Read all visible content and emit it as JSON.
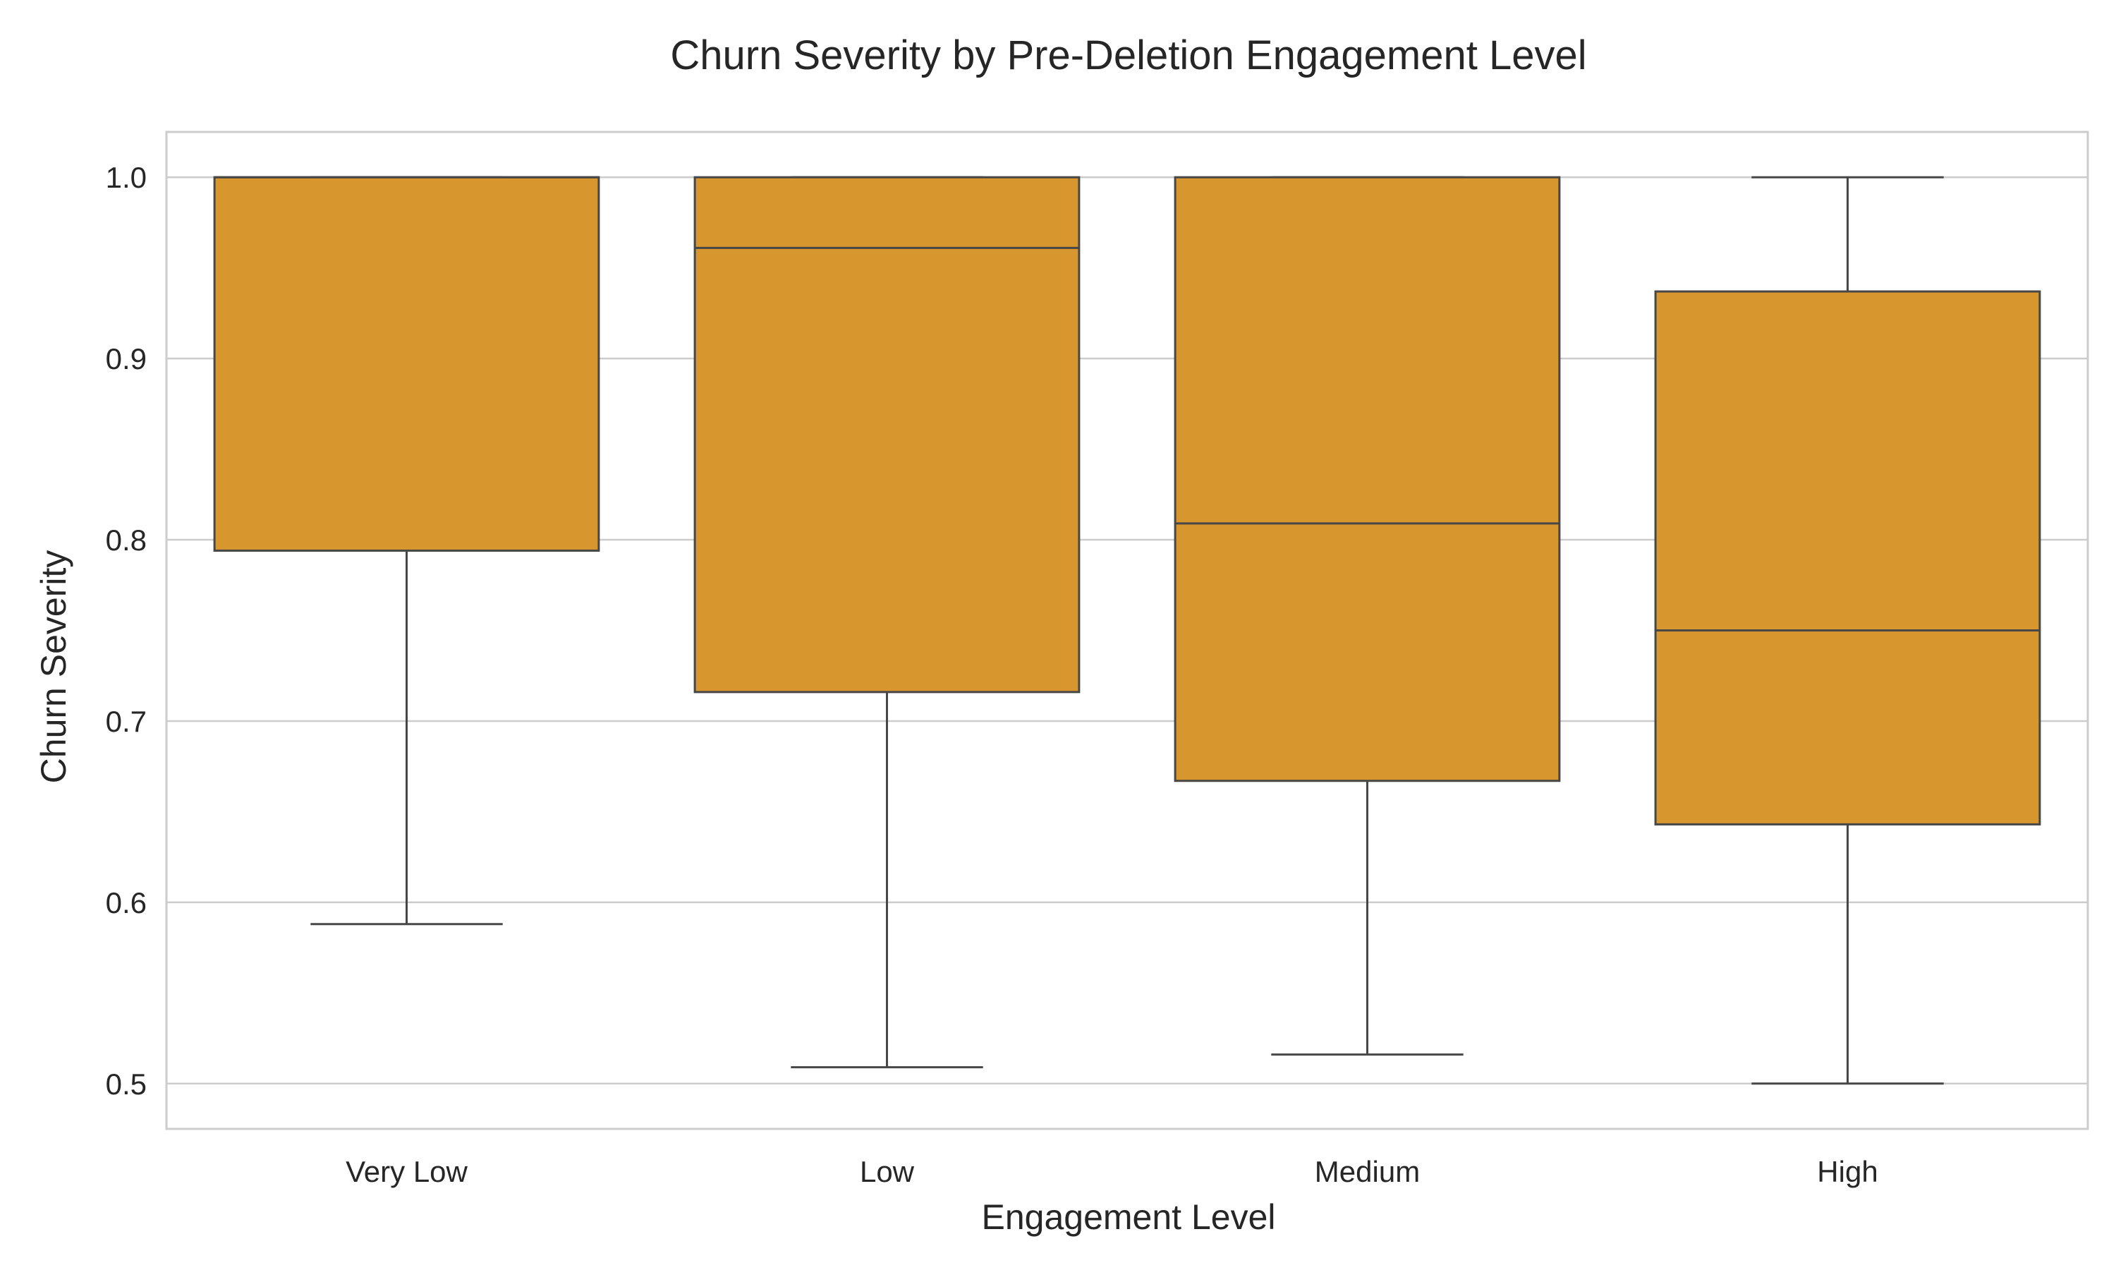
{
  "chart_data": {
    "type": "box",
    "title": "Churn Severity by Pre-Deletion Engagement Level",
    "xlabel": "Engagement Level",
    "ylabel": "Churn Severity",
    "categories": [
      "Very Low",
      "Low",
      "Medium",
      "High"
    ],
    "ylim": [
      0.475,
      1.025
    ],
    "yticks": [
      0.5,
      0.6,
      0.7,
      0.8,
      0.9,
      1.0
    ],
    "ytick_labels": [
      "0.5",
      "0.6",
      "0.7",
      "0.8",
      "0.9",
      "1.0"
    ],
    "grid": true,
    "box_color": "#d8962f",
    "line_color": "#474747",
    "grid_color": "#cccccc",
    "spine_color": "#cccccc",
    "boxes": [
      {
        "category": "Very Low",
        "whisker_low": 0.588,
        "q1": 0.794,
        "median": 1.0,
        "q3": 1.0,
        "whisker_high": 1.0
      },
      {
        "category": "Low",
        "whisker_low": 0.509,
        "q1": 0.716,
        "median": 0.961,
        "q3": 1.0,
        "whisker_high": 1.0
      },
      {
        "category": "Medium",
        "whisker_low": 0.516,
        "q1": 0.667,
        "median": 0.809,
        "q3": 1.0,
        "whisker_high": 1.0
      },
      {
        "category": "High",
        "whisker_low": 0.5,
        "q1": 0.643,
        "median": 0.75,
        "q3": 0.937,
        "whisker_high": 1.0
      }
    ]
  }
}
